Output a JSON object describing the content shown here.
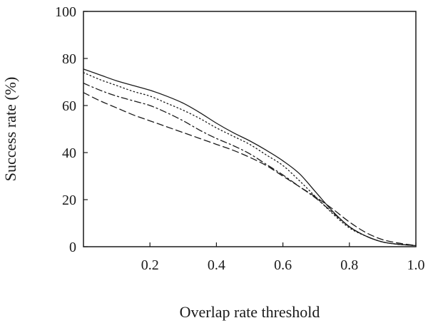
{
  "chart_data": {
    "type": "line",
    "xlabel": "Overlap rate threshold",
    "ylabel": "Success rate (%)",
    "xlim": [
      0,
      1
    ],
    "ylim": [
      0,
      100
    ],
    "grid": false,
    "xticks": [
      0.2,
      0.4,
      0.6,
      0.8,
      1.0
    ],
    "xtick_labels": [
      "0.2",
      "0.4",
      "0.6",
      "0.8",
      "1.0"
    ],
    "yticks": [
      0,
      20,
      40,
      60,
      80,
      100
    ],
    "ytick_labels": [
      "0",
      "20",
      "40",
      "60",
      "80",
      "100"
    ],
    "x": [
      0,
      0.05,
      0.1,
      0.15,
      0.2,
      0.25,
      0.3,
      0.35,
      0.4,
      0.45,
      0.5,
      0.55,
      0.6,
      0.65,
      0.7,
      0.75,
      0.8,
      0.85,
      0.9,
      0.95,
      1.0
    ],
    "series": [
      {
        "style": "solid",
        "color": "#1a1a1a",
        "values": [
          75.5,
          73,
          70.5,
          68.5,
          66.5,
          64,
          61,
          57,
          52.5,
          48.5,
          45,
          41,
          36.5,
          31,
          23,
          15,
          8.5,
          4.5,
          2,
          1,
          0.5
        ]
      },
      {
        "style": "dotted",
        "color": "#1a1a1a",
        "values": [
          74,
          71,
          68.5,
          66,
          64,
          61,
          58,
          54.5,
          50.5,
          47,
          43.5,
          39,
          34.5,
          28,
          21,
          14,
          8,
          4.5,
          2,
          1,
          0.5
        ]
      },
      {
        "style": "dash-dot",
        "color": "#1a1a1a",
        "values": [
          69.5,
          66.5,
          64,
          62,
          60,
          57,
          53.5,
          49.5,
          46,
          43,
          39.5,
          35,
          30.5,
          25.5,
          20.5,
          14.5,
          8.5,
          4.5,
          2,
          1,
          0.5
        ]
      },
      {
        "style": "dashed",
        "color": "#1a1a1a",
        "values": [
          65.5,
          62,
          59,
          56,
          53.5,
          51,
          48.5,
          46,
          43.5,
          41,
          38,
          34.5,
          30,
          25.5,
          21,
          16,
          10.5,
          6,
          3,
          1.5,
          0.5
        ]
      }
    ]
  }
}
